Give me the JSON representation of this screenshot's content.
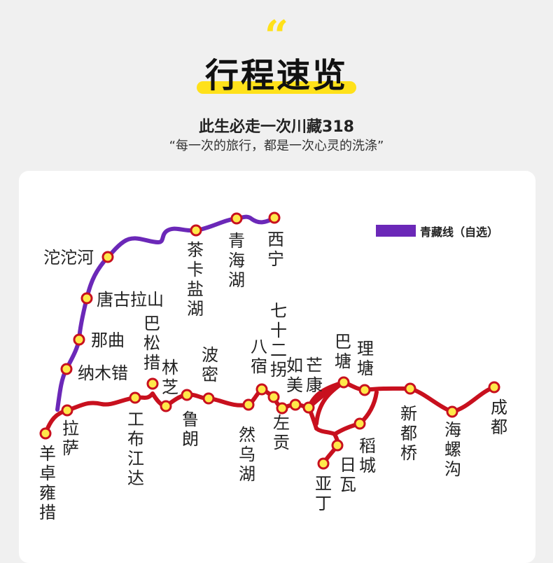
{
  "header": {
    "quote_mark": "“",
    "title": "行程速览",
    "subtitle": "此生必走一次川藏318",
    "tagline": "“每一次的旅行，都是一次心灵的洗涤”"
  },
  "legend": {
    "label": "青藏线（自选）"
  },
  "colors": {
    "accent_yellow": "#ffe11a",
    "qingzang_line": "#6b28b8",
    "route_318": "#c8101e",
    "station_fill": "#ffe94a",
    "station_stroke": "#c8101e"
  },
  "stations": {
    "xining": "西宁",
    "qinghai_lake": "青海湖",
    "chaka": "茶卡盐湖",
    "tuotuohe": "沱沱河",
    "tanggula": "唐古拉山",
    "nagqu": "那曲",
    "namtso": "纳木错",
    "lhasa": "拉萨",
    "yamdrok": "羊卓雍措",
    "gongbo": "工布江达",
    "basum": "巴松措",
    "nyingchi": "林芝",
    "lulang": "鲁朗",
    "bomi": "波密",
    "ranwu": "然乌湖",
    "baxoi": "八宿",
    "72turns": "七十二拐",
    "zogang": "左贡",
    "rumei": "如美",
    "markam": "芒康",
    "batang": "巴塘",
    "litang": "理塘",
    "daocheng": "稻城",
    "riwa": "日瓦",
    "yading": "亚丁",
    "xinduqiao": "新都桥",
    "hailuogou": "海螺沟",
    "chengdu": "成都"
  }
}
